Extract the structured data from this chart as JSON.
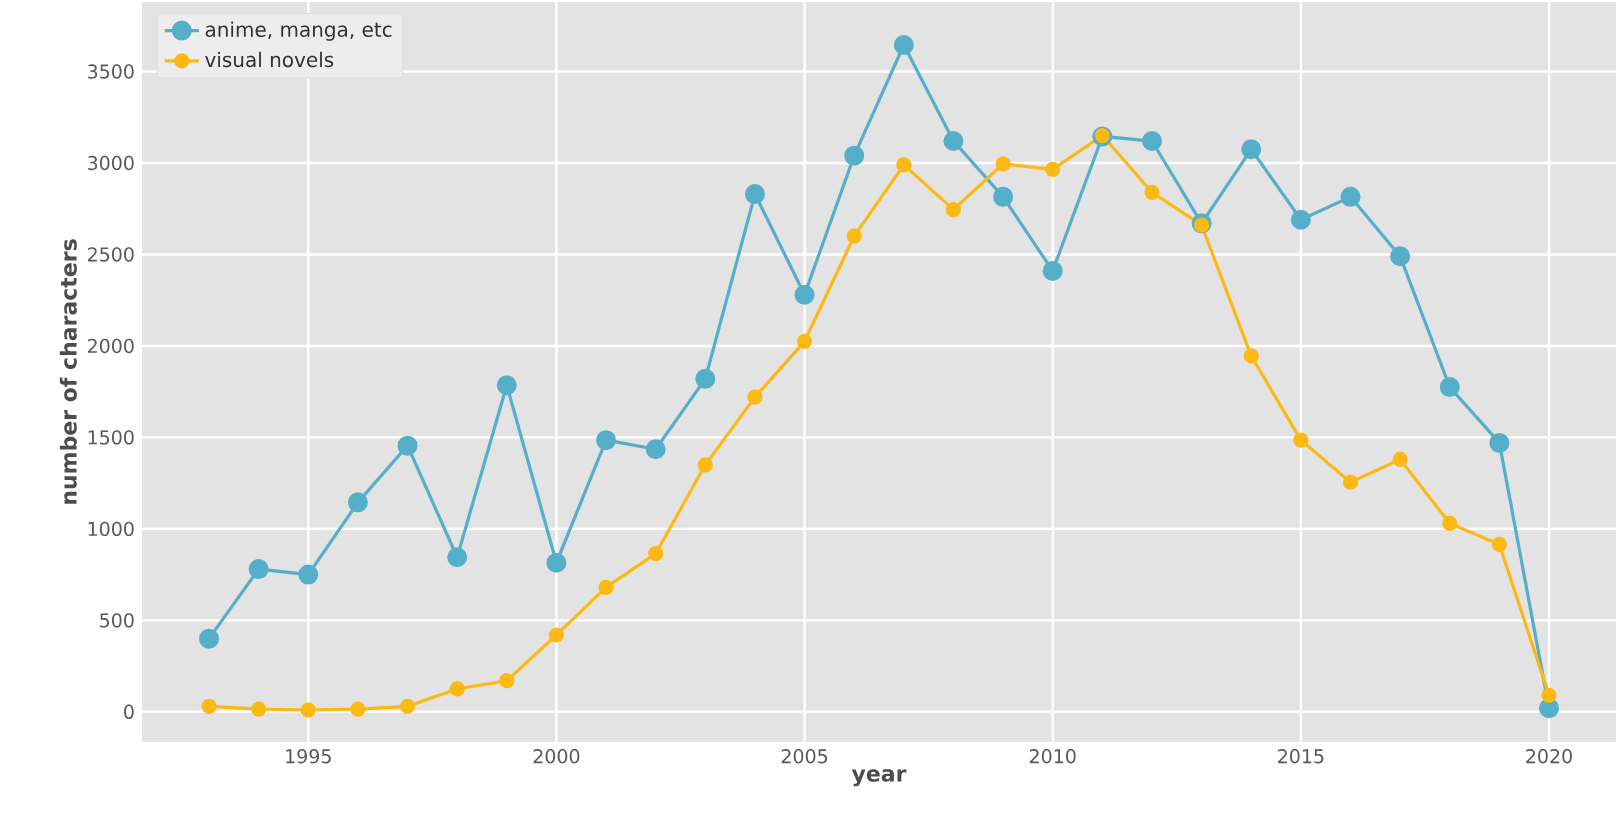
{
  "chart_data": {
    "type": "line",
    "xlabel": "year",
    "ylabel": "number of characters",
    "x": [
      1993,
      1994,
      1995,
      1996,
      1997,
      1998,
      1999,
      2000,
      2001,
      2002,
      2003,
      2004,
      2005,
      2006,
      2007,
      2008,
      2009,
      2010,
      2011,
      2012,
      2013,
      2014,
      2015,
      2016,
      2017,
      2018,
      2019,
      2020
    ],
    "series": [
      {
        "name": "anime, manga, etc",
        "color": "#55afc9",
        "values": [
          400,
          780,
          750,
          1145,
          1455,
          845,
          1785,
          815,
          1485,
          1435,
          1820,
          2830,
          2280,
          3040,
          3645,
          3120,
          2815,
          2410,
          3145,
          3120,
          2670,
          3075,
          2690,
          2815,
          2490,
          1775,
          1470,
          20
        ]
      },
      {
        "name": "visual novels",
        "color": "#fdb913",
        "values": [
          30,
          15,
          10,
          15,
          30,
          125,
          170,
          420,
          680,
          865,
          1350,
          1720,
          2025,
          2600,
          2990,
          2745,
          2995,
          2965,
          3150,
          2840,
          2660,
          1945,
          1485,
          1255,
          1380,
          1030,
          915,
          90
        ]
      }
    ],
    "xlim": [
      1991.65,
      2021.35
    ],
    "ylim": [
      -165,
      3880
    ],
    "xticks": [
      1995,
      2000,
      2005,
      2010,
      2015,
      2020
    ],
    "yticks": [
      0,
      500,
      1000,
      1500,
      2000,
      2500,
      3000,
      3500
    ],
    "grid": true,
    "legend": "top left",
    "marker": "circle",
    "line_style": "solid"
  }
}
